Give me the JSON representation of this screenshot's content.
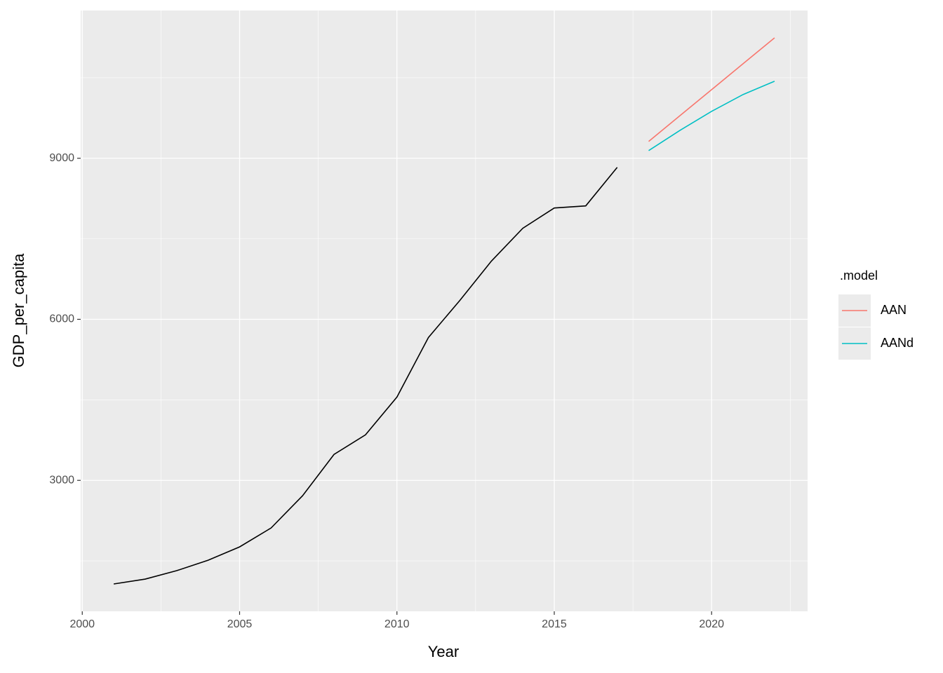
{
  "chart_data": {
    "type": "line",
    "x_label": "Year",
    "y_label": "GDP_per_capita",
    "x": [
      2001,
      2002,
      2003,
      2004,
      2005,
      2006,
      2007,
      2008,
      2009,
      2010,
      2011,
      2012,
      2013,
      2014,
      2015,
      2016,
      2017,
      2018,
      2019,
      2020,
      2021,
      2022
    ],
    "series": [
      {
        "color": "#000000",
        "values": [
          1070,
          1161,
          1318,
          1513,
          1761,
          2113,
          2713,
          3483,
          3848,
          4552,
          5661,
          6352,
          7083,
          7696,
          8074,
          8113,
          8830,
          null,
          null,
          null,
          null,
          null
        ]
      },
      {
        "name": "AAN",
        "color": "#f8766d",
        "values": [
          null,
          null,
          null,
          null,
          null,
          null,
          null,
          null,
          null,
          null,
          null,
          null,
          null,
          null,
          null,
          null,
          null,
          9313,
          9796,
          10278,
          10761,
          11243
        ]
      },
      {
        "name": "AANd",
        "color": "#00bfc4",
        "values": [
          null,
          null,
          null,
          null,
          null,
          null,
          null,
          null,
          null,
          null,
          null,
          null,
          null,
          null,
          null,
          null,
          null,
          9143,
          9522,
          9874,
          10187,
          10435
        ]
      }
    ],
    "legend_title": ".model",
    "xlim": [
      1999.95,
      2023.05
    ],
    "xticks": [
      2000,
      2005,
      2010,
      2015,
      2020
    ],
    "minor_xticks": [
      2002.5,
      2007.5,
      2012.5,
      2017.5,
      2022.5
    ],
    "ylim": [
      561,
      11752
    ],
    "yticks": [
      3000,
      6000,
      9000
    ],
    "minor_yticks": [
      1500,
      4500,
      7500,
      10500
    ],
    "grid": true,
    "legend_position": "right"
  }
}
